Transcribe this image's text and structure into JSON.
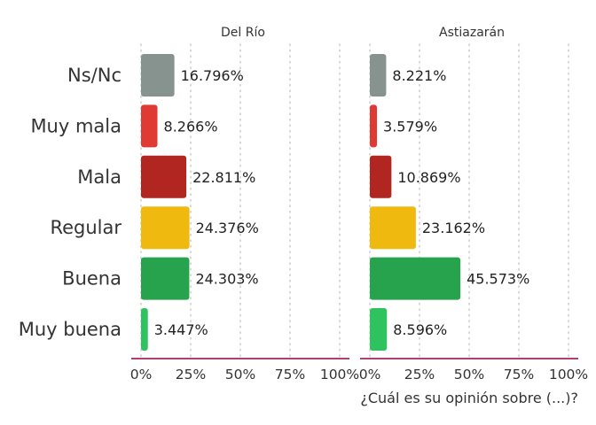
{
  "chart_data": {
    "type": "bar",
    "orientation": "horizontal",
    "categories": [
      "Ns/Nc",
      "Muy mala",
      "Mala",
      "Regular",
      "Buena",
      "Muy buena"
    ],
    "category_colors": [
      "#87938f",
      "#e03a35",
      "#b22622",
      "#f0b90f",
      "#26a34c",
      "#2ec35e"
    ],
    "facets": [
      {
        "title": "Del Río",
        "values": [
          16.796,
          8.266,
          22.811,
          24.376,
          24.303,
          3.447
        ],
        "labels": [
          "16.796%",
          "8.266%",
          "22.811%",
          "24.376%",
          "24.303%",
          "3.447%"
        ]
      },
      {
        "title": "Astiazarán",
        "values": [
          8.221,
          3.579,
          10.869,
          23.162,
          45.573,
          8.596
        ],
        "labels": [
          "8.221%",
          "3.579%",
          "10.869%",
          "23.162%",
          "45.573%",
          "8.596%"
        ]
      }
    ],
    "xlim": [
      0,
      100
    ],
    "x_ticks": [
      0,
      25,
      50,
      75,
      100
    ],
    "x_tick_labels": [
      "0%",
      "25%",
      "50%",
      "75%",
      "100%"
    ],
    "xlabel": "¿Cuál es su opinión sobre (...)?",
    "grid": "vertical-dotted",
    "axis_line_color": "#a3245e",
    "grid_color": "#c8c8c8"
  }
}
